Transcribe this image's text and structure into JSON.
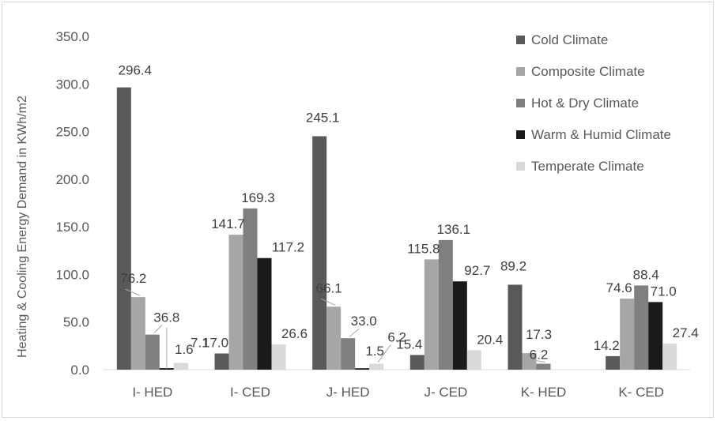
{
  "chart_data": {
    "type": "bar",
    "ylabel": "Heating & Cooling Energy Demand in KWh/m2",
    "xlabel": "",
    "ylim": [
      0,
      350
    ],
    "yticks": [
      "0.0",
      "50.0",
      "100.0",
      "150.0",
      "200.0",
      "250.0",
      "300.0",
      "350.0"
    ],
    "categories": [
      "I- HED",
      "I- CED",
      "J- HED",
      "J- CED",
      "K- HED",
      "K- CED"
    ],
    "legend_position": "top-right",
    "grid": false,
    "series": [
      {
        "name": "Cold Climate",
        "color": "#595959",
        "values": [
          296.4,
          17.0,
          245.1,
          15.4,
          89.2,
          14.2
        ],
        "labels": [
          "296.4",
          "17.0",
          "245.1",
          "15.4",
          "89.2",
          "14.2"
        ]
      },
      {
        "name": "Composite Climate",
        "color": "#a6a6a6",
        "values": [
          76.2,
          141.7,
          66.1,
          115.8,
          17.3,
          74.6
        ],
        "labels": [
          "76.2",
          "141.7",
          "66.1",
          "115.8",
          "17.3",
          "74.6"
        ]
      },
      {
        "name": "Hot & Dry Climate",
        "color": "#7f7f7f",
        "values": [
          36.8,
          169.3,
          33.0,
          136.1,
          6.2,
          88.4
        ],
        "labels": [
          "36.8",
          "169.3",
          "33.0",
          "136.1",
          "6.2",
          "88.4"
        ]
      },
      {
        "name": "Warm & Humid Climate",
        "color": "#1a1a1a",
        "values": [
          1.6,
          117.2,
          1.5,
          92.7,
          null,
          71.0
        ],
        "labels": [
          "1.6",
          "117.2",
          "1.5",
          "92.7",
          "",
          "71.0"
        ]
      },
      {
        "name": "Temperate Climate",
        "color": "#d9d9d9",
        "values": [
          7.1,
          26.6,
          6.2,
          20.4,
          null,
          27.4
        ],
        "labels": [
          "7.1",
          "26.6",
          "6.2",
          "20.4",
          "",
          "27.4"
        ]
      }
    ]
  }
}
